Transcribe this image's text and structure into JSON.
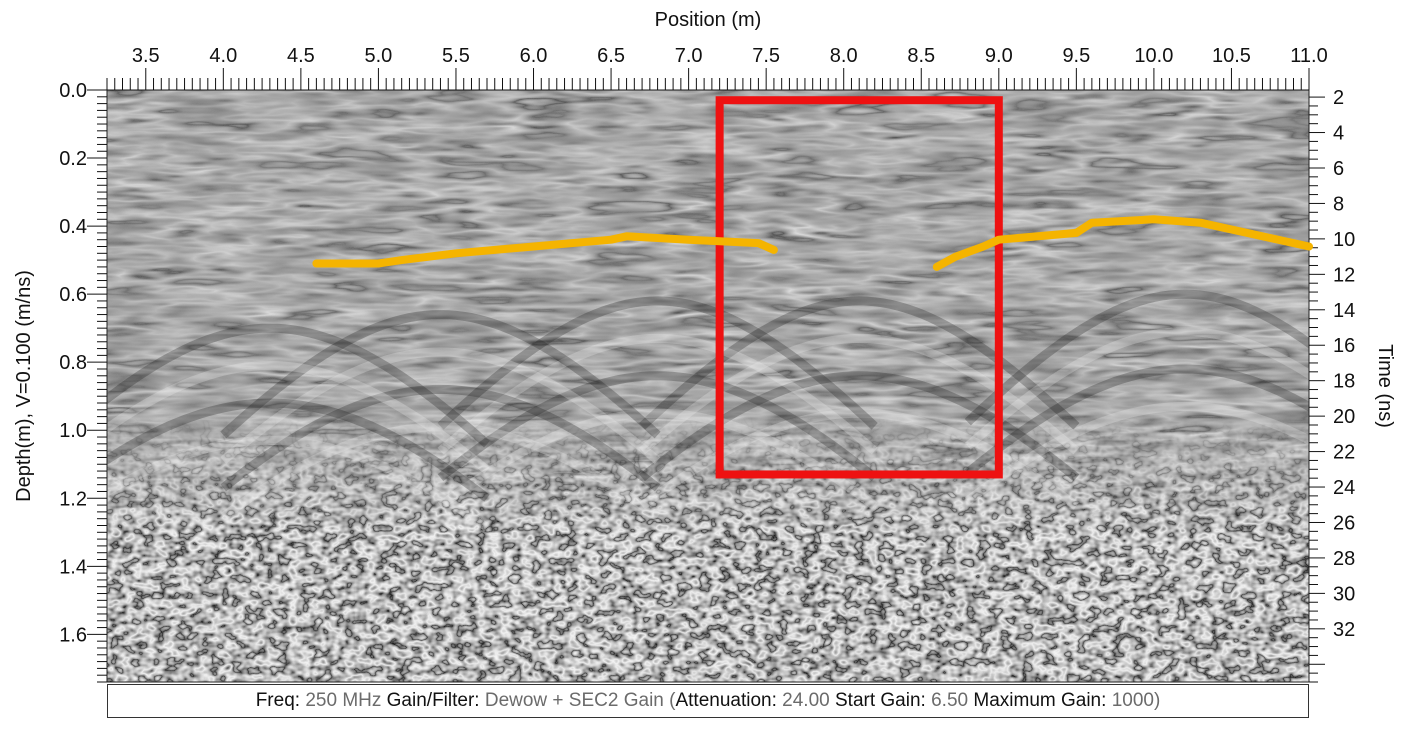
{
  "chart_data": {
    "type": "heatmap",
    "title": "",
    "xlabel": "Position (m)",
    "ylabel": "Depth(m), V=0.100 (m/ns)",
    "y2label": "Time (ns)",
    "xlim": [
      3.25,
      11.0
    ],
    "depth_lim": [
      0.0,
      1.74
    ],
    "time_lim": [
      1.6,
      35.0
    ],
    "x_ticks": [
      "3.5",
      "4.0",
      "4.5",
      "5.0",
      "5.5",
      "6.0",
      "6.5",
      "7.0",
      "7.5",
      "8.0",
      "8.5",
      "9.0",
      "9.5",
      "10.0",
      "10.5",
      "11.0"
    ],
    "depth_ticks": [
      "0.0",
      "0.2",
      "0.4",
      "0.6",
      "0.8",
      "1.0",
      "1.2",
      "1.4",
      "1.6"
    ],
    "time_ticks": [
      "2",
      "4",
      "6",
      "8",
      "10",
      "12",
      "14",
      "16",
      "18",
      "20",
      "22",
      "24",
      "26",
      "28",
      "30",
      "32"
    ],
    "colormap": "grayscale",
    "highlight_box": {
      "color": "#ee1111",
      "x_range": [
        7.2,
        9.0
      ],
      "depth_range": [
        0.03,
        1.13
      ]
    },
    "series": [
      {
        "color": "#f5b400",
        "points": [
          [
            4.6,
            0.51
          ],
          [
            5.0,
            0.51
          ],
          [
            5.15,
            0.5
          ],
          [
            5.5,
            0.48
          ],
          [
            6.0,
            0.46
          ],
          [
            6.5,
            0.44
          ],
          [
            6.6,
            0.43
          ],
          [
            7.0,
            0.44
          ],
          [
            7.45,
            0.45
          ],
          [
            7.55,
            0.47
          ]
        ]
      },
      {
        "color": "#f5b400",
        "points": [
          [
            8.6,
            0.52
          ],
          [
            8.72,
            0.49
          ],
          [
            8.9,
            0.46
          ],
          [
            9.0,
            0.44
          ],
          [
            9.5,
            0.42
          ],
          [
            9.6,
            0.39
          ],
          [
            10.0,
            0.38
          ],
          [
            10.3,
            0.39
          ],
          [
            10.6,
            0.42
          ],
          [
            11.0,
            0.46
          ]
        ]
      }
    ]
  },
  "footer": {
    "freq_label": "Freq:",
    "freq_value": "250 MHz",
    "gain_label": "Gain/Filter:",
    "gain_value": "Dewow + SEC2 Gain",
    "paren_open": "(",
    "atten_label": "Attenuation:",
    "atten_value": "24.00",
    "start_label": "Start Gain:",
    "start_value": "6.50",
    "max_label": "Maximum Gain:",
    "max_value": "1000",
    "paren_close": ")"
  }
}
